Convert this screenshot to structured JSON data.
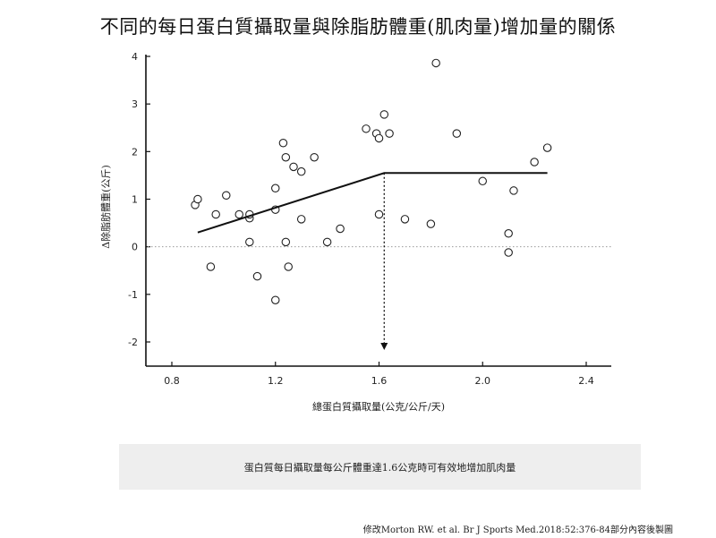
{
  "chart_data": {
    "type": "scatter",
    "title": "不同的每日蛋白質攝取量與除脂肪體重(肌肉量)增加量的關係",
    "xlabel": "總蛋白質攝取量(公克/公斤/天)",
    "ylabel": "Δ除脂肪體重(公斤)",
    "xlim": [
      0.7,
      2.6
    ],
    "ylim": [
      -2.5,
      4.05
    ],
    "x_ticks": [
      "0.8",
      "1.2",
      "1.6",
      "2.0",
      "2.4"
    ],
    "x_tick_values": [
      0.8,
      1.2,
      1.6,
      2.0,
      2.4
    ],
    "y_ticks": [
      "4",
      "3",
      "2",
      "1",
      "0",
      "-1",
      "-2"
    ],
    "y_tick_values": [
      4,
      3,
      2,
      1,
      0,
      -1,
      -2
    ],
    "points": [
      {
        "x": 0.89,
        "y": 0.88
      },
      {
        "x": 0.9,
        "y": 1.0
      },
      {
        "x": 0.95,
        "y": -0.42
      },
      {
        "x": 0.97,
        "y": 0.68
      },
      {
        "x": 1.01,
        "y": 1.08
      },
      {
        "x": 1.06,
        "y": 0.68
      },
      {
        "x": 1.1,
        "y": 0.6
      },
      {
        "x": 1.1,
        "y": 0.68
      },
      {
        "x": 1.1,
        "y": 0.1
      },
      {
        "x": 1.13,
        "y": -0.62
      },
      {
        "x": 1.2,
        "y": 1.23
      },
      {
        "x": 1.2,
        "y": 0.78
      },
      {
        "x": 1.2,
        "y": -1.12
      },
      {
        "x": 1.23,
        "y": 2.18
      },
      {
        "x": 1.24,
        "y": 1.88
      },
      {
        "x": 1.24,
        "y": 0.1
      },
      {
        "x": 1.25,
        "y": -0.42
      },
      {
        "x": 1.27,
        "y": 1.68
      },
      {
        "x": 1.3,
        "y": 1.58
      },
      {
        "x": 1.3,
        "y": 0.58
      },
      {
        "x": 1.35,
        "y": 1.88
      },
      {
        "x": 1.4,
        "y": 0.1
      },
      {
        "x": 1.45,
        "y": 0.38
      },
      {
        "x": 1.55,
        "y": 2.48
      },
      {
        "x": 1.59,
        "y": 2.38
      },
      {
        "x": 1.6,
        "y": 2.28
      },
      {
        "x": 1.6,
        "y": 0.68
      },
      {
        "x": 1.62,
        "y": 2.78
      },
      {
        "x": 1.64,
        "y": 2.38
      },
      {
        "x": 1.7,
        "y": 0.58
      },
      {
        "x": 1.8,
        "y": 0.48
      },
      {
        "x": 1.82,
        "y": 3.86
      },
      {
        "x": 1.9,
        "y": 2.38
      },
      {
        "x": 2.0,
        "y": 1.38
      },
      {
        "x": 2.1,
        "y": 0.28
      },
      {
        "x": 2.1,
        "y": -0.12
      },
      {
        "x": 2.12,
        "y": 1.18
      },
      {
        "x": 2.2,
        "y": 1.78
      },
      {
        "x": 2.25,
        "y": 2.08
      }
    ],
    "fit_line": [
      {
        "x": 0.9,
        "y": 0.3
      },
      {
        "x": 1.62,
        "y": 1.55
      },
      {
        "x": 2.25,
        "y": 1.55
      }
    ],
    "breakpoint_x": 1.62,
    "reference_line_y": 0,
    "grid": false
  },
  "note": "蛋白質每日攝取量每公斤體重達1.6公克時可有效地增加肌肉量",
  "source": "修改Morton RW. et al. Br J Sports Med.2018:52:376-84部分內容後製圖"
}
